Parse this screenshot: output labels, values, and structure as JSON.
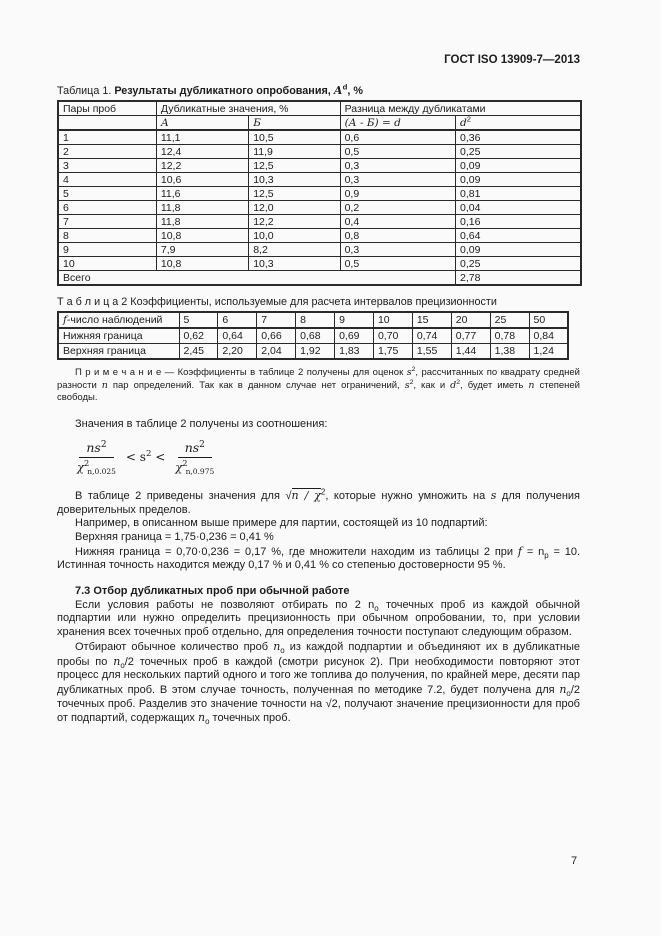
{
  "doc": {
    "standard": "ГОСТ ISO 13909-7—2013",
    "page_number": "7"
  },
  "table1": {
    "caption": [
      {
        "t": "Таблица 1. "
      },
      {
        "t": "Результаты дубликатного опробования, ",
        "c": "b"
      },
      {
        "t": "А",
        "c": "bi"
      },
      {
        "t": "d",
        "c": "b sup"
      },
      {
        "t": ", %",
        "c": "b"
      }
    ],
    "header": {
      "pairs": "Пары проб",
      "dup": "Дубликатные значения, %",
      "diff": "Разница между дубликатами",
      "a": [
        {
          "t": "А",
          "c": "mi"
        }
      ],
      "b": [
        {
          "t": "Б",
          "c": "mi"
        }
      ],
      "d": [
        {
          "t": "(А - Б) = d",
          "c": "mi"
        }
      ],
      "d2": [
        {
          "t": "d",
          "c": "mi"
        },
        {
          "t": "2",
          "c": "sup"
        }
      ]
    },
    "rows": [
      [
        "1",
        "11,1",
        "10,5",
        "0,6",
        "0,36"
      ],
      [
        "2",
        "12,4",
        "11,9",
        "0,5",
        "0,25"
      ],
      [
        "3",
        "12,2",
        "12,5",
        "0,3",
        "0,09"
      ],
      [
        "4",
        "10,6",
        "10,3",
        "0,3",
        "0,09"
      ],
      [
        "5",
        "11,6",
        "12,5",
        "0,9",
        "0,81"
      ],
      [
        "6",
        "11,8",
        "12,0",
        "0,2",
        "0,04"
      ],
      [
        "7",
        "11,8",
        "12,2",
        "0,4",
        "0,16"
      ],
      [
        "8",
        "10,8",
        "10,0",
        "0,8",
        "0,64"
      ],
      [
        "9",
        "7,9",
        "8,2",
        "0,3",
        "0,09"
      ],
      [
        "10",
        "10,8",
        "10,3",
        "0,5",
        "0,25"
      ]
    ],
    "total_label": "Всего",
    "total_value": "2,78"
  },
  "table2": {
    "caption": "Т а б л и ц а 2 Коэффициенты, используемые для расчета интервалов прецизионности",
    "f_label": [
      {
        "t": "f",
        "c": "mi"
      },
      {
        "t": "-число наблюдений"
      }
    ],
    "f_values": [
      "5",
      "6",
      "7",
      "8",
      "9",
      "10",
      "15",
      "20",
      "25",
      "50"
    ],
    "lower_label": "Нижняя граница",
    "lower_values": [
      "0,62",
      "0,64",
      "0,66",
      "0,68",
      "0,69",
      "0,70",
      "0,74",
      "0,77",
      "0,78",
      "0,84"
    ],
    "upper_label": "Верхняя граница",
    "upper_values": [
      "2,45",
      "2,20",
      "2,04",
      "1,92",
      "1,83",
      "1,75",
      "1,55",
      "1,44",
      "1,38",
      "1,24"
    ]
  },
  "note": [
    {
      "t": "П р и м е ч а н и е — Коэффициенты в таблице 2 получены для оценок "
    },
    {
      "t": "s",
      "c": "mi"
    },
    {
      "t": "2",
      "c": "sup"
    },
    {
      "t": ", рассчитанных по квадрату средней разности "
    },
    {
      "t": "n",
      "c": "mi"
    },
    {
      "t": " пар определений. Так как в данном случае нет ограничений, "
    },
    {
      "t": "s",
      "c": "mi"
    },
    {
      "t": "2",
      "c": "sup"
    },
    {
      "t": ", как и "
    },
    {
      "t": "d",
      "c": "mi"
    },
    {
      "t": "2",
      "c": "sup"
    },
    {
      "t": ", будет иметь "
    },
    {
      "t": "n",
      "c": "mi"
    },
    {
      "t": " степеней свободы."
    }
  ],
  "para_relation": "Значения в таблице 2 получены из соотношения:",
  "formula": {
    "num_left": [
      {
        "t": "ns",
        "c": "mi"
      },
      {
        "t": "2",
        "c": "sup"
      }
    ],
    "den_left": [
      {
        "t": "χ",
        "c": "mi"
      },
      {
        "t": "2",
        "c": "sup"
      },
      {
        "t": "n,0.025",
        "c": "sub"
      }
    ],
    "middle": [
      {
        "t": "< s"
      },
      {
        "t": "2",
        "c": "sup"
      },
      {
        "t": " <"
      }
    ],
    "num_right": [
      {
        "t": "ns",
        "c": "mi"
      },
      {
        "t": "2",
        "c": "sup"
      }
    ],
    "den_right": [
      {
        "t": "χ",
        "c": "mi"
      },
      {
        "t": "2",
        "c": "sup"
      },
      {
        "t": "n,0.975",
        "c": "sub"
      }
    ]
  },
  "para_values": [
    {
      "t": "В таблице 2 приведены значения для "
    },
    {
      "t": "√"
    },
    {
      "t": "n / χ",
      "c": "mi ovl"
    },
    {
      "t": "2",
      "c": "sup"
    },
    {
      "t": ", которые нужно умножить на "
    },
    {
      "t": "s",
      "c": "mi"
    },
    {
      "t": " для получения доверительных пределов."
    }
  ],
  "para_example": "Например, в описанном выше примере для партии, состоящей из 10 подпартий:",
  "line_upper": "Верхняя граница = 1,75·0,236 = 0,41 %",
  "line_lower": [
    {
      "t": "Нижняя граница = 0,70·0,236 = 0,17 %, где множители находим из таблицы 2 при "
    },
    {
      "t": "f",
      "c": "mi"
    },
    {
      "t": " = n"
    },
    {
      "t": "p",
      "c": "sub"
    },
    {
      "t": " = 10. Истинная точность находится между 0,17 % и 0,41 % со степенью достоверности 95 %."
    }
  ],
  "section73": {
    "heading": "7.3 Отбор дубликатных проб при обычной работе",
    "para1": [
      {
        "t": "Если условия работы не позволяют отбирать по 2 n"
      },
      {
        "t": "о",
        "c": "sub"
      },
      {
        "t": " точечных проб из каждой обычной подпартии или нужно определить прецизионность при обычном опробовании, то, при условии хранения всех точечных проб отдельно, для определения точности поступают следующим образом."
      }
    ],
    "para2": [
      {
        "t": "Отбирают обычное количество проб "
      },
      {
        "t": "n",
        "c": "mi"
      },
      {
        "t": "о",
        "c": "sub"
      },
      {
        "t": " из каждой подпартии и объединяют их в дубликатные пробы по "
      },
      {
        "t": "n",
        "c": "mi"
      },
      {
        "t": "о",
        "c": "sub"
      },
      {
        "t": "/2 точечных проб в каждой (смотри рисунок 2). При необходимости повторяют этот процесс для нескольких партий одного и того же топлива до получения, по крайней мере, десяти пар дубликатных проб. В этом случае точность, полученная по методике 7.2, будет получена для "
      },
      {
        "t": "n",
        "c": "mi"
      },
      {
        "t": "о",
        "c": "sub"
      },
      {
        "t": "/2 точечных проб. Разделив это значение точности на √2, получают значение прецизионности для проб от подпартий, содержащих "
      },
      {
        "t": "n",
        "c": "mi"
      },
      {
        "t": "о",
        "c": "sub"
      },
      {
        "t": " точечных проб."
      }
    ]
  }
}
